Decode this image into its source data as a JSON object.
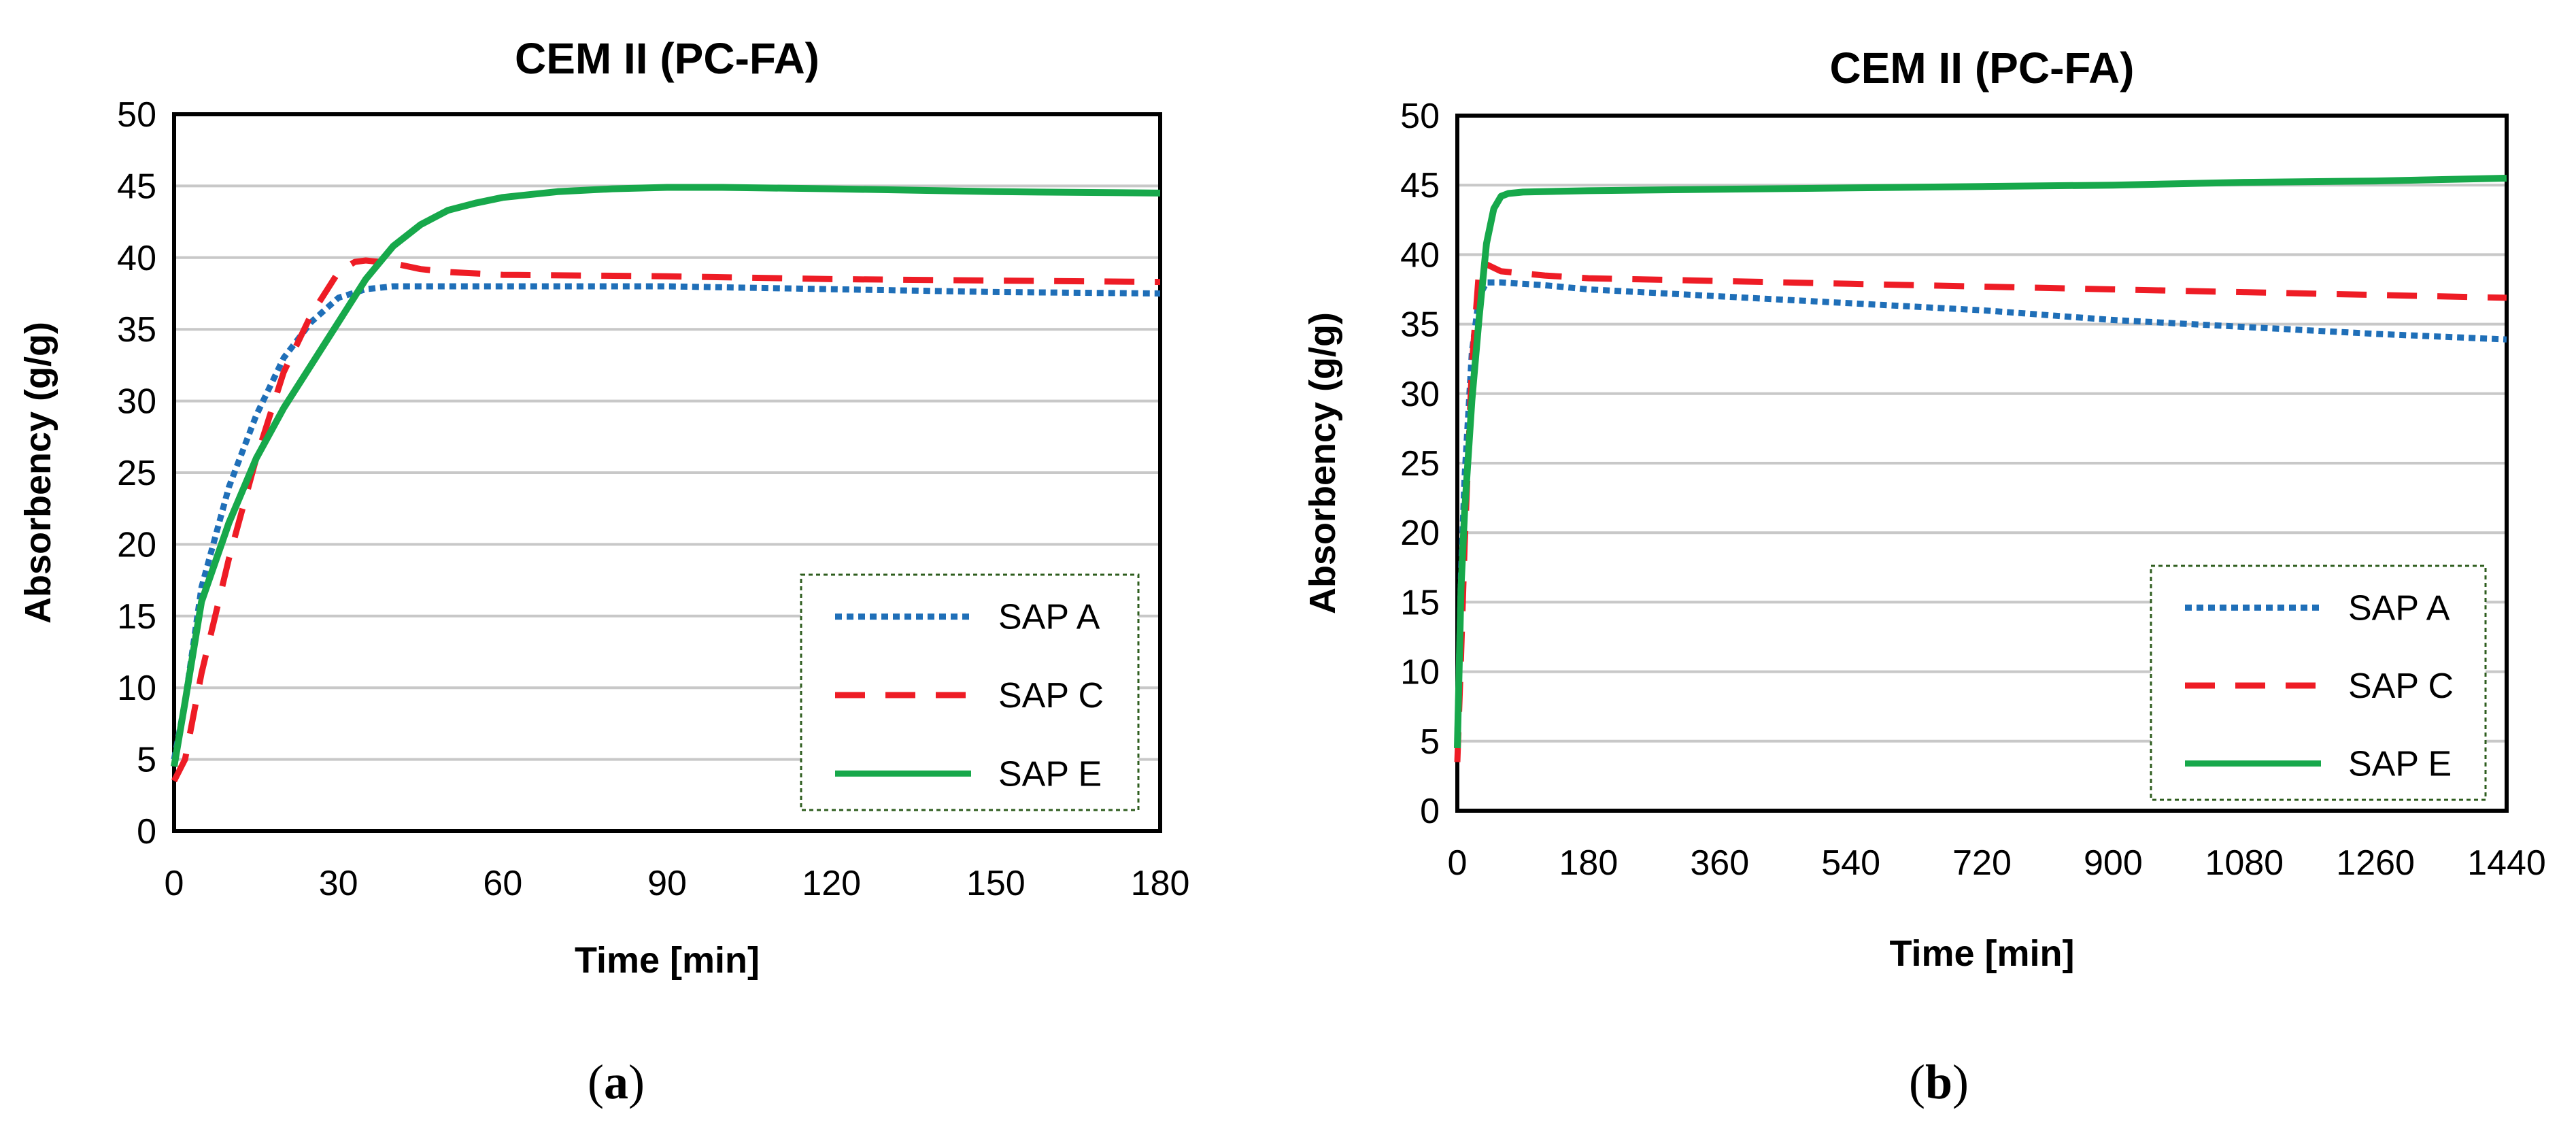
{
  "colors": {
    "SAP A": "#1f6fb8",
    "SAP C": "#ee1c25",
    "SAP E": "#17a84b",
    "grid": "#c8c8c8",
    "legend_border": "#2e5d1e"
  },
  "chart_data": [
    {
      "type": "line",
      "panel_label": "a",
      "title": "CEM II (PC-FA)",
      "xlabel": "Time [min]",
      "ylabel": "Absorbency (g/g)",
      "xlim": [
        0,
        180
      ],
      "ylim": [
        0,
        50
      ],
      "xticks": [
        0,
        30,
        60,
        90,
        120,
        150,
        180
      ],
      "yticks": [
        0,
        5,
        10,
        15,
        20,
        25,
        30,
        35,
        40,
        45,
        50
      ],
      "grid": "horizontal",
      "legend_position": "bottom-right",
      "series": [
        {
          "name": "SAP A",
          "style": "dotted",
          "x": [
            0,
            2,
            5,
            10,
            15,
            20,
            25,
            30,
            35,
            40,
            50,
            60,
            90,
            120,
            150,
            180
          ],
          "y": [
            5,
            9,
            17,
            24,
            29,
            33,
            35.5,
            37.2,
            37.8,
            38,
            38,
            38,
            38,
            37.8,
            37.6,
            37.5
          ]
        },
        {
          "name": "SAP C",
          "style": "dashed",
          "x": [
            0,
            2,
            5,
            10,
            15,
            20,
            25,
            30,
            33,
            35,
            40,
            45,
            50,
            60,
            90,
            120,
            150,
            180
          ],
          "y": [
            3.5,
            5,
            11,
            19,
            26,
            32,
            36,
            39,
            39.7,
            39.8,
            39.6,
            39.2,
            39,
            38.8,
            38.7,
            38.5,
            38.4,
            38.3
          ]
        },
        {
          "name": "SAP E",
          "style": "solid",
          "x": [
            0,
            2,
            5,
            10,
            15,
            20,
            25,
            30,
            35,
            40,
            45,
            50,
            55,
            60,
            70,
            80,
            90,
            100,
            120,
            150,
            180
          ],
          "y": [
            4.5,
            9,
            16,
            21.5,
            26,
            29.5,
            32.5,
            35.5,
            38.5,
            40.8,
            42.3,
            43.3,
            43.8,
            44.2,
            44.6,
            44.8,
            44.9,
            44.9,
            44.8,
            44.6,
            44.5
          ]
        }
      ]
    },
    {
      "type": "line",
      "panel_label": "b",
      "title": "CEM II (PC-FA)",
      "xlabel": "Time [min]",
      "ylabel": "Absorbency (g/g)",
      "xlim": [
        0,
        1440
      ],
      "ylim": [
        0,
        50
      ],
      "xticks": [
        0,
        180,
        360,
        540,
        720,
        900,
        1080,
        1260,
        1440
      ],
      "yticks": [
        0,
        5,
        10,
        15,
        20,
        25,
        30,
        35,
        40,
        45,
        50
      ],
      "grid": "horizontal",
      "legend_position": "bottom-right",
      "series": [
        {
          "name": "SAP A",
          "style": "dotted",
          "x": [
            0,
            5,
            10,
            20,
            30,
            40,
            60,
            120,
            180,
            360,
            540,
            720,
            900,
            1080,
            1260,
            1440
          ],
          "y": [
            5,
            17,
            24,
            33,
            37,
            38,
            38,
            37.8,
            37.5,
            37,
            36.5,
            36,
            35.3,
            34.8,
            34.3,
            33.9
          ]
        },
        {
          "name": "SAP C",
          "style": "dashed",
          "x": [
            0,
            5,
            10,
            20,
            30,
            35,
            40,
            60,
            120,
            180,
            360,
            540,
            720,
            900,
            1080,
            1260,
            1440
          ],
          "y": [
            3.5,
            11,
            19,
            32,
            39,
            39.5,
            39.3,
            38.8,
            38.5,
            38.3,
            38.1,
            37.9,
            37.7,
            37.5,
            37.3,
            37.1,
            36.9
          ]
        },
        {
          "name": "SAP E",
          "style": "solid",
          "x": [
            0,
            5,
            10,
            20,
            30,
            40,
            50,
            60,
            70,
            90,
            180,
            360,
            540,
            720,
            900,
            1080,
            1260,
            1440
          ],
          "y": [
            4.5,
            16,
            21.5,
            29.5,
            35.5,
            40.8,
            43.3,
            44.2,
            44.4,
            44.5,
            44.6,
            44.7,
            44.8,
            44.9,
            45.0,
            45.2,
            45.3,
            45.5
          ]
        }
      ]
    }
  ]
}
